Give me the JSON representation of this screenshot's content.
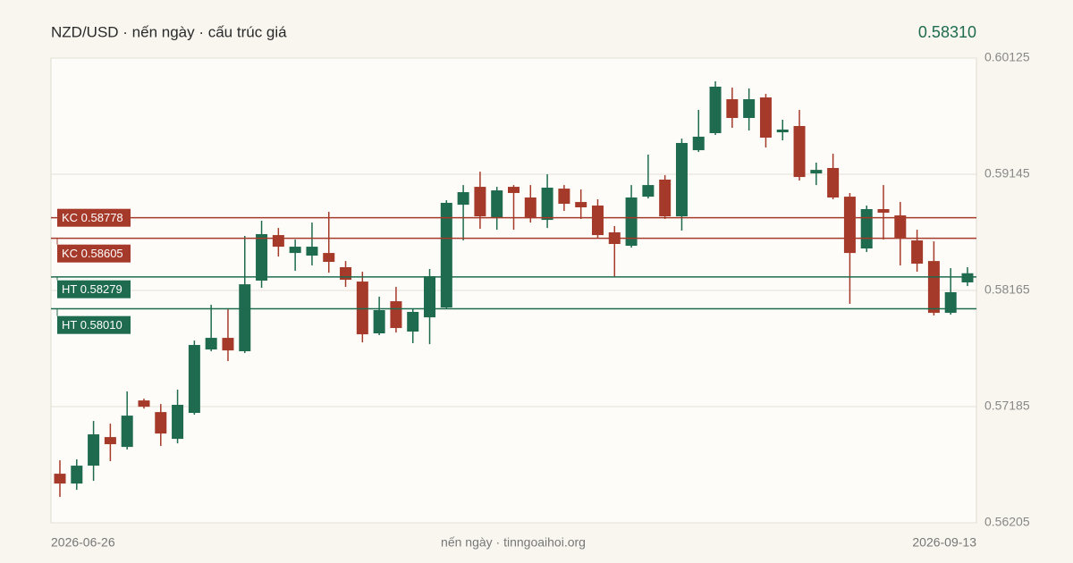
{
  "chart_data": {
    "type": "candlestick",
    "title": "NZD/USD · nến ngày · cấu trúc giá",
    "price_label": "0.58310",
    "footer": "nến ngày · tinngoaihoi.org",
    "categories": [
      "2026-06-26",
      null,
      null,
      null,
      null,
      null,
      null,
      null,
      null,
      null,
      null,
      null,
      null,
      null,
      null,
      null,
      null,
      null,
      null,
      null,
      null,
      null,
      null,
      null,
      null,
      null,
      null,
      null,
      null,
      null,
      null,
      null,
      null,
      null,
      null,
      null,
      null,
      null,
      null,
      null,
      null,
      null,
      null,
      null,
      null,
      null,
      null,
      null,
      null,
      null,
      null,
      null,
      null,
      null,
      "2026-09-13"
    ],
    "open": [
      0.56619,
      0.56536,
      0.56687,
      0.56928,
      0.56845,
      0.57237,
      0.57139,
      0.56913,
      0.57132,
      0.57667,
      0.57765,
      0.57652,
      0.58248,
      0.58632,
      0.58481,
      0.58459,
      0.58481,
      0.58361,
      0.5824,
      0.57803,
      0.58074,
      0.57818,
      0.57938,
      0.58021,
      0.58888,
      0.59039,
      0.58783,
      0.59039,
      0.58949,
      0.5876,
      0.59024,
      0.58911,
      0.58881,
      0.58655,
      0.58542,
      0.58956,
      0.591,
      0.5879,
      0.59348,
      0.59492,
      0.59778,
      0.5962,
      0.59793,
      0.59499,
      0.59552,
      0.59152,
      0.59198,
      0.58956,
      0.58519,
      0.58851,
      0.58798,
      0.58587,
      0.58413,
      0.57976,
      0.58233
    ],
    "high": [
      0.56732,
      0.5674,
      0.57064,
      0.57041,
      0.57313,
      0.57252,
      0.57207,
      0.57328,
      0.57742,
      0.58044,
      0.58006,
      0.58625,
      0.58753,
      0.58692,
      0.58594,
      0.58738,
      0.58828,
      0.58413,
      0.58323,
      0.58112,
      0.58195,
      0.58014,
      0.58346,
      0.58926,
      0.59054,
      0.59167,
      0.59039,
      0.59054,
      0.59054,
      0.59145,
      0.59054,
      0.59017,
      0.58934,
      0.58708,
      0.59054,
      0.59311,
      0.59137,
      0.59446,
      0.59688,
      0.59929,
      0.59876,
      0.59869,
      0.59823,
      0.59605,
      0.59688,
      0.59243,
      0.59318,
      0.58987,
      0.58881,
      0.59054,
      0.58911,
      0.58677,
      0.58579,
      0.58353,
      0.58361
    ],
    "low": [
      0.56423,
      0.56483,
      0.56559,
      0.56725,
      0.56823,
      0.57169,
      0.56853,
      0.56875,
      0.57117,
      0.57652,
      0.57569,
      0.57637,
      0.58187,
      0.58451,
      0.58331,
      0.58376,
      0.58315,
      0.58195,
      0.57727,
      0.57788,
      0.5781,
      0.5772,
      0.57712,
      0.58014,
      0.58587,
      0.58685,
      0.58677,
      0.58677,
      0.58738,
      0.58692,
      0.58836,
      0.58768,
      0.5861,
      0.58278,
      0.58526,
      0.58941,
      0.58768,
      0.5867,
      0.59333,
      0.59477,
      0.59537,
      0.59514,
      0.59371,
      0.59431,
      0.59092,
      0.59054,
      0.58934,
      0.58052,
      0.58489,
      0.58594,
      0.58376,
      0.58323,
      0.57954,
      0.57961,
      0.58202
    ],
    "close": [
      0.56536,
      0.56687,
      0.56951,
      0.56868,
      0.57109,
      0.57184,
      0.56958,
      0.572,
      0.57705,
      0.57765,
      0.57659,
      0.58217,
      0.5864,
      0.58534,
      0.58534,
      0.58534,
      0.58406,
      0.58255,
      0.57795,
      0.57999,
      0.57848,
      0.57984,
      0.58285,
      0.58904,
      0.58994,
      0.5879,
      0.59009,
      0.58987,
      0.58783,
      0.59032,
      0.58896,
      0.58866,
      0.58632,
      0.58557,
      0.58949,
      0.59054,
      0.5879,
      0.59409,
      0.59462,
      0.59884,
      0.5962,
      0.59778,
      0.59454,
      0.59522,
      0.59122,
      0.59182,
      0.58949,
      0.58481,
      0.58851,
      0.58821,
      0.5861,
      0.58391,
      0.57976,
      0.5815,
      0.5831
    ],
    "up_color": "#1e6b4f",
    "down_color": "#a63a2a",
    "levels": [
      {
        "label": "KC 0.58778",
        "value": 0.58778,
        "color": "#a63a2a"
      },
      {
        "label": "KC 0.58605",
        "value": 0.58605,
        "color": "#a63a2a"
      },
      {
        "label": "HT 0.58279",
        "value": 0.58279,
        "color": "#1e6b4f"
      },
      {
        "label": "HT 0.58010",
        "value": 0.5801,
        "color": "#1e6b4f"
      }
    ],
    "ylim": [
      0.56205,
      0.60125
    ],
    "yticks": [
      0.56205,
      0.57185,
      0.58165,
      0.59145,
      0.60125
    ],
    "grid": true
  }
}
